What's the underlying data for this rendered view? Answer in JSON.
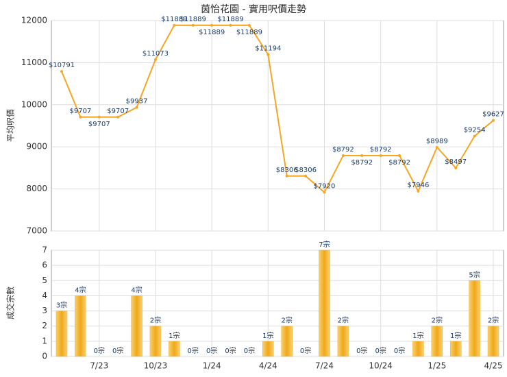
{
  "chart_data": [
    {
      "type": "line",
      "title": "茵怡花園 - 實用呎價走勢",
      "y_label": "平均呎價",
      "color": "#f5a623",
      "grid": true,
      "values": [
        10791,
        9707,
        9707,
        9707,
        9937,
        11073,
        11889,
        11889,
        11889,
        11889,
        11889,
        11194,
        8306,
        8306,
        7920,
        8792,
        8792,
        8792,
        8792,
        7946,
        8989,
        8497,
        9254,
        9627
      ],
      "value_labels": [
        "$10791",
        "$9707",
        "$9707",
        "$9707",
        "$9937",
        "$11073",
        "$11889",
        "$11889",
        "$11889",
        "$11889",
        "$11889",
        "$11194",
        "$8306",
        "$8306",
        "$7920",
        "$8792",
        "$8792",
        "$8792",
        "$8792",
        "$7946",
        "$8989",
        "$8497",
        "$9254",
        "$9627"
      ],
      "ylim": [
        7000,
        12000
      ],
      "yticks": [
        7000,
        8000,
        9000,
        10000,
        11000,
        12000
      ]
    },
    {
      "type": "bar",
      "y_label": "成交宗數",
      "color": "#f0b030",
      "grid": true,
      "categories": [
        null,
        null,
        "7/23",
        null,
        null,
        "10/23",
        null,
        null,
        "1/24",
        null,
        null,
        "4/24",
        null,
        null,
        "7/24",
        null,
        null,
        "10/24",
        null,
        null,
        "1/25",
        null,
        null,
        "4/25"
      ],
      "values": [
        3,
        4,
        0,
        0,
        4,
        2,
        1,
        0,
        0,
        0,
        0,
        1,
        2,
        0,
        7,
        2,
        0,
        0,
        0,
        1,
        2,
        1,
        5,
        2
      ],
      "value_labels": [
        "3宗",
        "4宗",
        "0宗",
        "0宗",
        "4宗",
        "2宗",
        "1宗",
        "0宗",
        "0宗",
        "0宗",
        "0宗",
        "1宗",
        "2宗",
        "0宗",
        "7宗",
        "2宗",
        "0宗",
        "0宗",
        "0宗",
        "1宗",
        "2宗",
        "1宗",
        "5宗",
        "2宗"
      ],
      "ylim": [
        0,
        7
      ],
      "yticks": [
        0,
        1,
        2,
        3,
        4,
        5,
        6,
        7
      ]
    }
  ]
}
